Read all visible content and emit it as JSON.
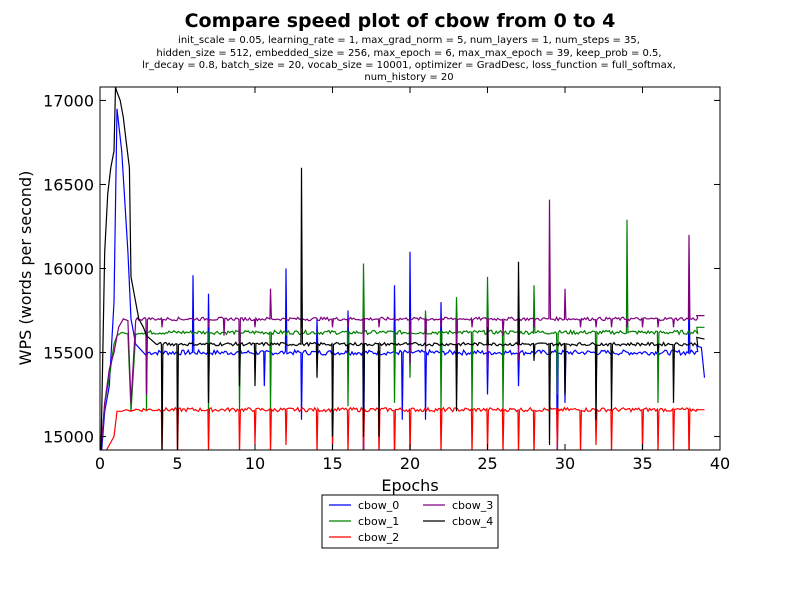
{
  "chart_data": {
    "type": "line",
    "title": "Compare speed plot of cbow from 0 to 4",
    "subtitle_lines": [
      "init_scale = 0.05, learning_rate = 1, max_grad_norm = 5, num_layers = 1, num_steps = 35,",
      "hidden_size = 512, embedded_size = 256, max_epoch = 6, max_max_epoch = 39, keep_prob = 0.5,",
      "lr_decay = 0.8, batch_size = 20, vocab_size = 10001, optimizer = GradDesc, loss_function = full_softmax,",
      "num_history = 20"
    ],
    "xlabel": "Epochs",
    "ylabel": "WPS (words per second)",
    "xlim": [
      0,
      40
    ],
    "ylim": [
      14920,
      17080
    ],
    "xticks": [
      0,
      5,
      10,
      15,
      20,
      25,
      30,
      35,
      40
    ],
    "yticks": [
      15000,
      15500,
      16000,
      16500,
      17000
    ],
    "grid": false,
    "legend_position": "below-plot",
    "series": [
      {
        "name": "cbow_0",
        "color": "#0000ff",
        "base": 15500,
        "noise": 15,
        "x": [
          0.05,
          0.3,
          0.6,
          0.9,
          1.1,
          1.4,
          1.8,
          2.0,
          2.3,
          2.6,
          2.8,
          3.0
        ],
        "y": [
          14850,
          15150,
          15300,
          15800,
          16950,
          16700,
          16100,
          15700,
          15550,
          15520,
          15500,
          15480
        ],
        "events": [
          [
            6.0,
            15960
          ],
          [
            7.0,
            15850
          ],
          [
            10.6,
            15300
          ],
          [
            12.0,
            16000
          ],
          [
            13.0,
            15100
          ],
          [
            14.0,
            15700
          ],
          [
            16.0,
            15750
          ],
          [
            17.0,
            14700
          ],
          [
            19.0,
            15900
          ],
          [
            19.5,
            15100
          ],
          [
            20.0,
            16100
          ],
          [
            21.0,
            15100
          ],
          [
            22.0,
            15800
          ],
          [
            25.0,
            15250
          ],
          [
            27.0,
            15300
          ],
          [
            29.5,
            14800
          ],
          [
            30.0,
            15200
          ],
          [
            38.0,
            15900
          ]
        ],
        "end": [
          [
            38.5,
            15540
          ],
          [
            38.8,
            15530
          ],
          [
            39.0,
            15350
          ]
        ]
      },
      {
        "name": "cbow_1",
        "color": "#008000",
        "base": 15620,
        "noise": 12,
        "x": [
          0.05,
          0.3,
          0.6,
          0.9,
          1.1,
          1.4,
          1.8,
          2.0,
          2.3
        ],
        "y": [
          14900,
          15200,
          15350,
          15550,
          15600,
          15620,
          15610,
          15150,
          15610
        ],
        "events": [
          [
            3.0,
            15150
          ],
          [
            7.0,
            15130
          ],
          [
            9.0,
            15150
          ],
          [
            11.0,
            15150
          ],
          [
            12.0,
            15600
          ],
          [
            16.0,
            15180
          ],
          [
            17.0,
            16030
          ],
          [
            19.0,
            15200
          ],
          [
            20.0,
            15350
          ],
          [
            21.0,
            15750
          ],
          [
            22.0,
            15150
          ],
          [
            23.0,
            15830
          ],
          [
            24.0,
            15150
          ],
          [
            25.0,
            15950
          ],
          [
            26.0,
            15150
          ],
          [
            28.0,
            15900
          ],
          [
            29.5,
            15250
          ],
          [
            32.0,
            15150
          ],
          [
            34.0,
            16290
          ],
          [
            36.0,
            15200
          ]
        ],
        "end": [
          [
            38.5,
            15650
          ],
          [
            39.0,
            15650
          ]
        ]
      },
      {
        "name": "cbow_2",
        "color": "#ff0000",
        "base": 15160,
        "noise": 12,
        "x": [
          0.05,
          0.3,
          0.6,
          0.9,
          1.1,
          1.4,
          1.7,
          2.0
        ],
        "y": [
          14850,
          14900,
          14950,
          15000,
          15150,
          15150,
          15160,
          15150
        ],
        "events": [
          [
            4.0,
            14900
          ],
          [
            5.0,
            14900
          ],
          [
            7.0,
            14900
          ],
          [
            9.0,
            14900
          ],
          [
            10.0,
            14950
          ],
          [
            11.0,
            14900
          ],
          [
            12.0,
            14950
          ],
          [
            14.0,
            14900
          ],
          [
            15.0,
            14920
          ],
          [
            16.0,
            14900
          ],
          [
            17.0,
            14880
          ],
          [
            18.0,
            14880
          ],
          [
            19.0,
            14850
          ],
          [
            20.0,
            14870
          ],
          [
            22.0,
            14900
          ],
          [
            24.0,
            14900
          ],
          [
            25.0,
            14900
          ],
          [
            26.0,
            14900
          ],
          [
            27.0,
            14900
          ],
          [
            28.0,
            14880
          ],
          [
            29.5,
            14920
          ],
          [
            31.0,
            14900
          ],
          [
            32.0,
            14950
          ],
          [
            33.0,
            14900
          ],
          [
            35.0,
            14900
          ],
          [
            36.0,
            14900
          ],
          [
            37.0,
            14900
          ],
          [
            38.0,
            14850
          ]
        ],
        "end": [
          [
            38.5,
            15160
          ],
          [
            39.0,
            15160
          ]
        ]
      },
      {
        "name": "cbow_3",
        "color": "#800080",
        "base": 15700,
        "noise": 10,
        "x": [
          0.05,
          0.3,
          0.6,
          0.9,
          1.2,
          1.5,
          1.8,
          2.0,
          2.3
        ],
        "y": [
          14900,
          15200,
          15400,
          15500,
          15650,
          15700,
          15690,
          15200,
          15690
        ],
        "events": [
          [
            3.0,
            15250
          ],
          [
            4.0,
            15650
          ],
          [
            7.0,
            15650
          ],
          [
            8.0,
            15600
          ],
          [
            9.0,
            15350
          ],
          [
            10.0,
            15650
          ],
          [
            11.0,
            15880
          ],
          [
            13.0,
            15650
          ],
          [
            15.0,
            15650
          ],
          [
            16.0,
            15650
          ],
          [
            17.0,
            15500
          ],
          [
            18.0,
            15650
          ],
          [
            20.0,
            15430
          ],
          [
            21.0,
            15500
          ],
          [
            22.0,
            15650
          ],
          [
            23.0,
            15450
          ],
          [
            24.0,
            15650
          ],
          [
            25.0,
            15400
          ],
          [
            26.0,
            15600
          ],
          [
            27.0,
            15450
          ],
          [
            28.0,
            15650
          ],
          [
            29.0,
            16410
          ],
          [
            30.0,
            15880
          ],
          [
            31.0,
            15650
          ],
          [
            32.0,
            15650
          ],
          [
            33.0,
            15650
          ],
          [
            34.0,
            15650
          ],
          [
            35.0,
            15650
          ],
          [
            36.0,
            15650
          ],
          [
            37.0,
            15650
          ],
          [
            38.0,
            16200
          ]
        ],
        "end": [
          [
            38.5,
            15720
          ],
          [
            39.0,
            15720
          ]
        ]
      },
      {
        "name": "cbow_4",
        "color": "#000000",
        "base": 15550,
        "noise": 10,
        "x": [
          0.05,
          0.3,
          0.5,
          0.7,
          0.9,
          1.0,
          1.1,
          1.3,
          1.5,
          1.7,
          1.9,
          2.0,
          2.2,
          2.5,
          2.8,
          3.0,
          3.5
        ],
        "y": [
          14850,
          16100,
          16450,
          16600,
          16700,
          17080,
          17050,
          17000,
          16900,
          16750,
          16600,
          15950,
          15850,
          15700,
          15650,
          15600,
          15560
        ],
        "events": [
          [
            4.0,
            14900
          ],
          [
            5.0,
            14900
          ],
          [
            7.0,
            15200
          ],
          [
            9.0,
            15300
          ],
          [
            10.0,
            15300
          ],
          [
            13.0,
            16600
          ],
          [
            14.0,
            15350
          ],
          [
            15.0,
            15000
          ],
          [
            16.0,
            15500
          ],
          [
            17.0,
            15000
          ],
          [
            18.0,
            15000
          ],
          [
            20.0,
            15550
          ],
          [
            23.0,
            15150
          ],
          [
            25.0,
            15650
          ],
          [
            27.0,
            16040
          ],
          [
            28.0,
            15450
          ],
          [
            29.0,
            14950
          ],
          [
            30.0,
            15250
          ],
          [
            32.0,
            15100
          ],
          [
            33.0,
            15150
          ],
          [
            36.0,
            15500
          ],
          [
            37.0,
            15200
          ]
        ],
        "end": [
          [
            38.5,
            15590
          ],
          [
            39.0,
            15580
          ]
        ]
      }
    ]
  }
}
